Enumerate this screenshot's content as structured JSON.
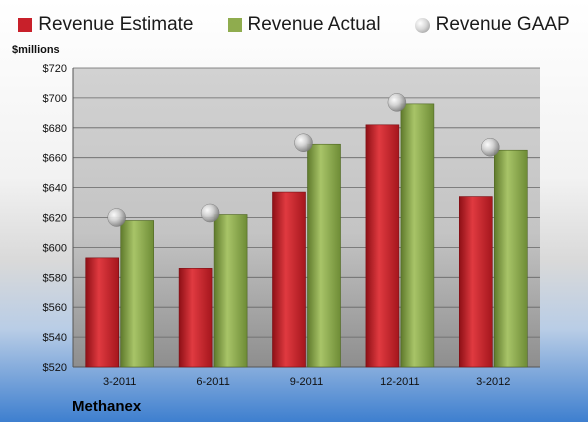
{
  "legend": {
    "estimate": "Revenue Estimate",
    "actual": "Revenue Actual",
    "gaap": "Revenue GAAP"
  },
  "unit_label": "$millions",
  "company": "Methanex",
  "colors": {
    "estimate": "#c8202a",
    "actual": "#8fac4e",
    "gaap": "#c8c8c8"
  },
  "chart_data": {
    "type": "bar",
    "categories": [
      "3-2011",
      "6-2011",
      "9-2011",
      "12-2011",
      "3-2012"
    ],
    "series": [
      {
        "name": "Revenue Estimate",
        "values": [
          593,
          586,
          637,
          682,
          634
        ]
      },
      {
        "name": "Revenue Actual",
        "values": [
          618,
          622,
          669,
          696,
          665
        ]
      },
      {
        "name": "Revenue GAAP",
        "values": [
          620,
          623,
          670,
          697,
          667
        ],
        "style": "marker"
      }
    ],
    "ylabel": "$millions",
    "ylim": [
      520,
      720
    ],
    "yticks": [
      "$520",
      "$540",
      "$560",
      "$580",
      "$600",
      "$620",
      "$640",
      "$660",
      "$680",
      "$700",
      "$720"
    ],
    "grid": true,
    "legend_position": "top"
  }
}
